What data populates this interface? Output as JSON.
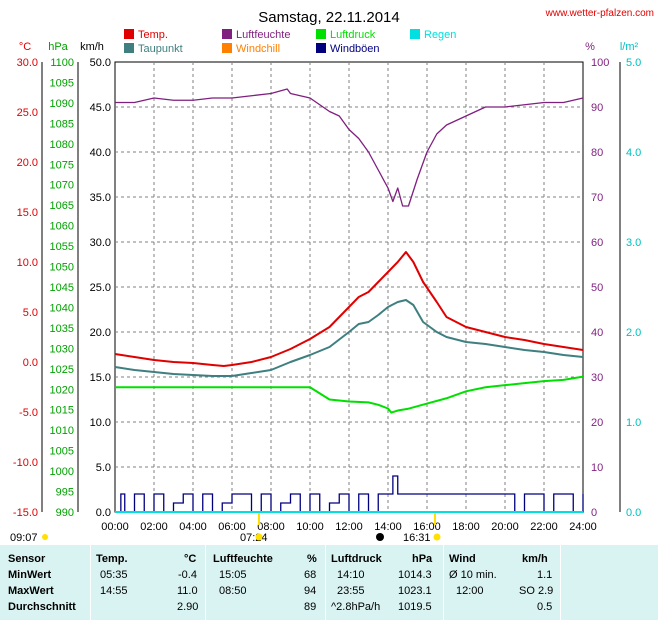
{
  "title": "Samstag, 22.11.2014",
  "source": "www.wetter-pfalzen.com",
  "colors": {
    "temp": "#e00000",
    "taupunkt": "#3f7f7f",
    "luftfeuchte": "#7f1f7f",
    "windchill": "#ff8000",
    "luftdruck": "#00e000",
    "windboeen": "#00007f",
    "regen": "#00e0e0",
    "grid": "#808080",
    "table_bg": "#d9f2f2"
  },
  "units": {
    "celsius": "°C",
    "hpa": "hPa",
    "kmh": "km/h",
    "percent": "%",
    "rain": "l/m²"
  },
  "legend": [
    {
      "label": "Temp.",
      "color": "#e00000"
    },
    {
      "label": "Luftfeuchte",
      "color": "#7f1f7f"
    },
    {
      "label": "Luftdruck",
      "color": "#00e000"
    },
    {
      "label": "Regen",
      "color": "#00e0e0"
    },
    {
      "label": "Taupunkt",
      "color": "#3f7f7f"
    },
    {
      "label": "Windchill",
      "color": "#ff8000"
    },
    {
      "label": "Windböen",
      "color": "#00007f"
    }
  ],
  "sun": {
    "moonrise": "09:07",
    "sunrise": "07:24",
    "moon_time": "14:00",
    "sunset": "16:31"
  },
  "chart_data": {
    "type": "line",
    "title": "Samstag, 22.11.2014",
    "x_ticks": [
      "00:00",
      "02:00",
      "04:00",
      "06:00",
      "08:00",
      "10:00",
      "12:00",
      "14:00",
      "16:00",
      "18:00",
      "20:00",
      "22:00",
      "24:00"
    ],
    "xlim": [
      0,
      24
    ],
    "axes": {
      "temp_c": {
        "unit": "°C",
        "range": [
          -15,
          30
        ],
        "ticks": [
          "30.0",
          "25.0",
          "20.0",
          "15.0",
          "10.0",
          "5.0",
          "0.0",
          "-5.0",
          "-10.0",
          "-15.0"
        ]
      },
      "pressure_hpa": {
        "unit": "hPa",
        "range": [
          990,
          1100
        ],
        "ticks": [
          "1100",
          "1095",
          "1090",
          "1085",
          "1080",
          "1075",
          "1070",
          "1065",
          "1060",
          "1055",
          "1050",
          "1045",
          "1040",
          "1035",
          "1030",
          "1025",
          "1020",
          "1015",
          "1010",
          "1005",
          "1000",
          "995",
          "990"
        ]
      },
      "wind_kmh": {
        "unit": "km/h",
        "range": [
          0,
          50
        ],
        "ticks": [
          "50.0",
          "45.0",
          "40.0",
          "35.0",
          "30.0",
          "25.0",
          "20.0",
          "15.0",
          "10.0",
          "5.0",
          "0.0"
        ]
      },
      "humidity_pct": {
        "unit": "%",
        "range": [
          0,
          100
        ],
        "ticks": [
          "100",
          "90",
          "80",
          "70",
          "60",
          "50",
          "40",
          "30",
          "20",
          "10",
          "0"
        ]
      },
      "rain_lm2": {
        "unit": "l/m²",
        "range": [
          0,
          5
        ],
        "ticks": [
          "5.0",
          "4.0",
          "3.0",
          "2.0",
          "1.0",
          "0.0"
        ]
      }
    },
    "series": [
      {
        "name": "Temp.",
        "axis": "temp_c",
        "color": "#e00000",
        "x": [
          0,
          1,
          2,
          3,
          4,
          5,
          5.58,
          6,
          7,
          8,
          9,
          10,
          11,
          12,
          12.5,
          13,
          13.5,
          14,
          14.5,
          14.92,
          15.3,
          15.8,
          16.5,
          17,
          18,
          19,
          20,
          21,
          22,
          23,
          24
        ],
        "y": [
          0.8,
          0.5,
          0.2,
          0,
          -0.1,
          -0.3,
          -0.4,
          -0.3,
          0,
          0.5,
          1.3,
          2.3,
          3.5,
          5.5,
          6.5,
          7.0,
          8.0,
          9.0,
          10.0,
          11.0,
          10.0,
          8.0,
          6.0,
          4.5,
          3.5,
          3.0,
          2.5,
          2.2,
          1.8,
          1.5,
          1.2
        ]
      },
      {
        "name": "Taupunkt",
        "axis": "temp_c",
        "color": "#3f7f7f",
        "x": [
          0,
          1,
          2,
          3,
          4,
          5,
          6,
          7,
          8,
          9,
          10,
          11,
          12,
          12.5,
          13,
          13.5,
          14,
          14.5,
          14.92,
          15.3,
          15.8,
          16.5,
          17,
          18,
          19,
          20,
          21,
          22,
          23,
          24
        ],
        "y": [
          -0.5,
          -0.8,
          -1.0,
          -1.2,
          -1.3,
          -1.4,
          -1.4,
          -1.1,
          -0.8,
          0,
          0.7,
          1.5,
          3.0,
          3.8,
          4.0,
          4.7,
          5.5,
          6.0,
          6.2,
          5.7,
          4.0,
          3.0,
          2.5,
          2.0,
          1.8,
          1.5,
          1.2,
          1.0,
          0.7,
          0.5
        ]
      },
      {
        "name": "Luftfeuchte",
        "axis": "humidity_pct",
        "color": "#7f1f7f",
        "x": [
          0,
          1,
          1.5,
          2,
          3,
          4,
          5,
          6,
          7,
          8,
          8.83,
          9,
          10,
          11,
          11.5,
          12,
          12.5,
          13,
          13.5,
          14,
          14.25,
          14.5,
          14.75,
          15.05,
          15.5,
          16,
          16.5,
          17,
          18,
          19,
          20,
          21,
          22,
          23,
          24
        ],
        "y": [
          91,
          91,
          91.5,
          92,
          91.5,
          91.5,
          92,
          92,
          92.5,
          93,
          94,
          93,
          92,
          89,
          88,
          85,
          83,
          80,
          76,
          72,
          69,
          72,
          68,
          68,
          74,
          80,
          84,
          86,
          88,
          90,
          90,
          90.5,
          91,
          91,
          92
        ]
      },
      {
        "name": "Luftdruck",
        "axis": "pressure_hpa",
        "color": "#00e000",
        "x": [
          0,
          2,
          4,
          6,
          8,
          10,
          10.5,
          11,
          12,
          13,
          13.5,
          14,
          14.17,
          14.5,
          15,
          16,
          17,
          18,
          19,
          20,
          21,
          22,
          23,
          24
        ],
        "y": [
          1020.5,
          1020.5,
          1020.5,
          1020.5,
          1020.5,
          1020.5,
          1019,
          1017.5,
          1017,
          1016.8,
          1016.2,
          1015.3,
          1014.3,
          1014.8,
          1015.2,
          1016.5,
          1017.8,
          1019.5,
          1020.5,
          1021,
          1021.5,
          1022,
          1022.3,
          1023.1
        ]
      },
      {
        "name": "Windböen",
        "axis": "wind_kmh",
        "color": "#00007f",
        "x": [
          0,
          0.3,
          0.5,
          1,
          1.5,
          2,
          2.5,
          3,
          3.5,
          4,
          4.5,
          5,
          5.5,
          6,
          6.5,
          7,
          7.5,
          8,
          8.5,
          9,
          9.5,
          10,
          10.5,
          11,
          11.5,
          12,
          12.5,
          13,
          13.5,
          14,
          14.25,
          14.5,
          14.75,
          15,
          15.5,
          16,
          16.5,
          17,
          17.5,
          18,
          18.5,
          19,
          19.5,
          20,
          20.5,
          21,
          21.5,
          22,
          22.5,
          23,
          23.5,
          24
        ],
        "y": [
          0,
          2,
          0,
          2,
          0,
          2,
          0,
          1,
          2,
          0,
          2,
          0,
          1,
          2,
          2,
          0,
          2,
          0,
          1,
          2,
          0,
          2,
          0,
          1,
          2,
          0,
          2,
          0,
          2,
          2,
          4,
          2,
          2,
          2,
          2,
          2,
          2,
          2,
          2,
          2,
          2,
          2,
          2,
          2,
          0,
          2,
          2,
          0,
          2,
          2,
          0,
          2
        ]
      },
      {
        "name": "Windchill",
        "axis": "temp_c",
        "color": "#ff8000",
        "x": [],
        "y": []
      },
      {
        "name": "Regen",
        "axis": "rain_lm2",
        "color": "#00e0e0",
        "x": [
          0,
          24
        ],
        "y": [
          0,
          0
        ]
      }
    ]
  },
  "stats": {
    "col_labels": {
      "sensor": "Sensor",
      "temp": "Temp.",
      "temp_unit": "°C",
      "hum": "Luftfeuchte",
      "hum_unit": "%",
      "press": "Luftdruck",
      "press_unit": "hPa",
      "wind": "Wind",
      "wind_unit": "km/h"
    },
    "rows": [
      {
        "label": "MinWert",
        "temp_time": "05:35",
        "temp_val": "-0.4",
        "hum_time": "15:05",
        "hum_val": "68",
        "press_time": "14:10",
        "press_val": "1014.3",
        "wind_time": "Ø 10 min.",
        "wind_val": "1.1"
      },
      {
        "label": "MaxWert",
        "temp_time": "14:55",
        "temp_val": "11.0",
        "hum_time": "08:50",
        "hum_val": "94",
        "press_time": "23:55",
        "press_val": "1023.1",
        "wind_time": "12:00",
        "wind_val": "SO 2.9"
      },
      {
        "label": "Durchschnitt",
        "temp_time": "",
        "temp_val": "2.90",
        "hum_time": "",
        "hum_val": "89",
        "press_time": "^2.8hPa/h",
        "press_val": "1019.5",
        "wind_time": "",
        "wind_val": "0.5"
      }
    ]
  }
}
